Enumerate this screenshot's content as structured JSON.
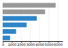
{
  "chart_data": {
    "type": "bar",
    "orientation": "horizontal",
    "values": [
      5750,
      4600,
      3700,
      2600,
      1450,
      800
    ],
    "colors": [
      "#999999",
      "#999999",
      "#2e86c8",
      "#2e86c8",
      "#2e86c8",
      "#2e86c8"
    ],
    "xlim": [
      0,
      6500
    ],
    "xticks": [
      0,
      1000,
      2000,
      3000,
      4000,
      5000,
      6000
    ],
    "grid": true,
    "tick_labels": "x"
  }
}
